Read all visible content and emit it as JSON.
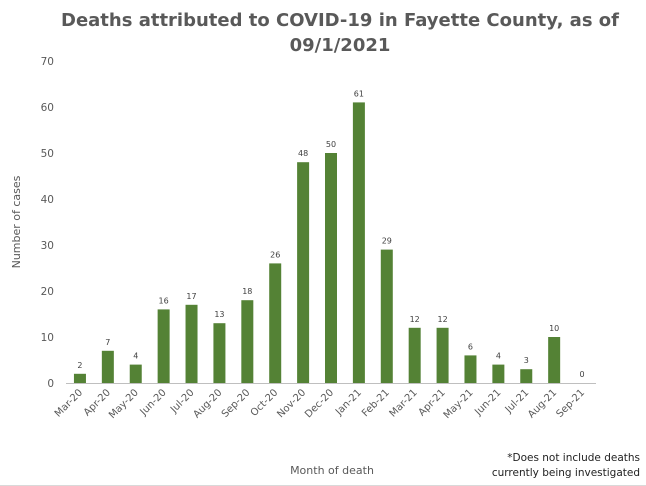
{
  "chart_data": {
    "type": "bar",
    "title": "Deaths attributed to COVID-19 in Fayette County, as of 09/1/2021",
    "xlabel": "Month of death",
    "ylabel": "Number of cases",
    "categories": [
      "Mar-20",
      "Apr-20",
      "May-20",
      "Jun-20",
      "Jul-20",
      "Aug-20",
      "Sep-20",
      "Oct-20",
      "Nov-20",
      "Dec-20",
      "Jan-21",
      "Feb-21",
      "Mar-21",
      "Apr-21",
      "May-21",
      "Jun-21",
      "Jul-21",
      "Aug-21",
      "Sep-21"
    ],
    "series": [
      {
        "values": [
          2,
          7,
          4,
          16,
          17,
          13,
          18,
          26,
          48,
          50,
          61,
          29,
          12,
          12,
          6,
          4,
          3,
          10,
          0
        ]
      }
    ],
    "ylim": [
      0,
      70
    ],
    "yticks": [
      0,
      10,
      20,
      30,
      40,
      50,
      60,
      70
    ],
    "grid": false,
    "legend": "none",
    "data_labels": true,
    "bar_color": "#548235",
    "footnote": [
      "*Does not include deaths",
      "currently being investigated"
    ]
  }
}
